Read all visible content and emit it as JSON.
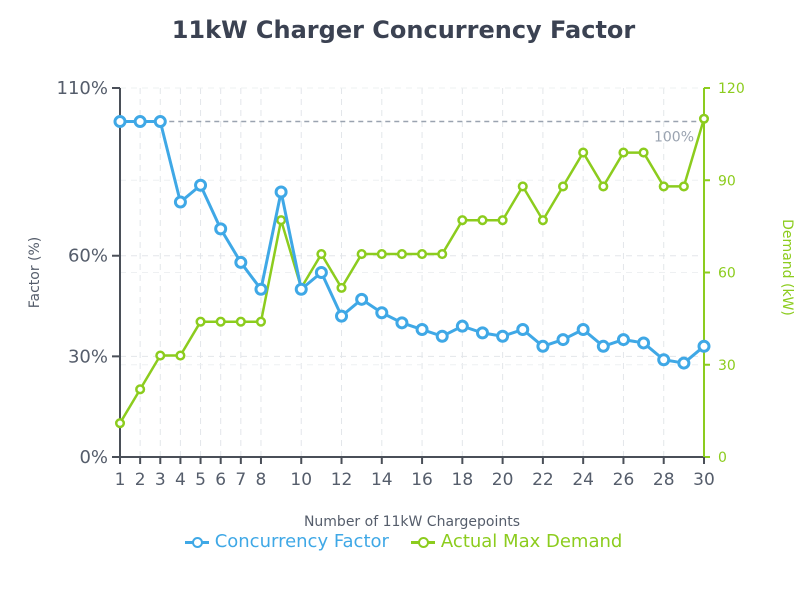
{
  "chart_data": {
    "type": "line",
    "title": "11kW Charger Concurrency Factor",
    "xlabel": "Number of 11kW Chargepoints",
    "ylabel_left": "Factor (%)",
    "ylabel_right": "Demand (kW)",
    "x": [
      1,
      2,
      3,
      4,
      5,
      6,
      7,
      8,
      9,
      10,
      11,
      12,
      13,
      14,
      15,
      16,
      17,
      18,
      19,
      20,
      21,
      22,
      23,
      24,
      25,
      26,
      27,
      28,
      29,
      30
    ],
    "x_ticks": [
      1,
      2,
      3,
      4,
      5,
      6,
      7,
      8,
      10,
      12,
      14,
      16,
      18,
      20,
      22,
      24,
      26,
      28,
      30
    ],
    "y_left_ticks": [
      "0%",
      "30%",
      "60%",
      "110%"
    ],
    "y_left_tick_values": [
      0,
      30,
      60,
      110
    ],
    "y_left_range": [
      0,
      110
    ],
    "y_right_ticks": [
      0,
      30,
      60,
      90,
      120
    ],
    "y_right_range": [
      0,
      120
    ],
    "reference_line": {
      "value": 100,
      "label": "100%"
    },
    "grid": true,
    "legend_position": "bottom",
    "series": [
      {
        "name": "Concurrency Factor",
        "axis": "left",
        "color": "#3fa8e6",
        "values": [
          100,
          100,
          100,
          76,
          81,
          68,
          58,
          50,
          79,
          50,
          55,
          42,
          47,
          43,
          40,
          38,
          36,
          39,
          37,
          36,
          38,
          33,
          35,
          38,
          33,
          35,
          34,
          29,
          28,
          33
        ]
      },
      {
        "name": "Actual Max Demand",
        "axis": "right",
        "color": "#8ccc1e",
        "values": [
          11,
          22,
          33,
          33,
          44,
          44,
          44,
          44,
          77,
          55,
          66,
          55,
          66,
          66,
          66,
          66,
          66,
          77,
          77,
          77,
          88,
          77,
          88,
          99,
          88,
          99,
          99,
          88,
          88,
          110
        ]
      }
    ]
  }
}
